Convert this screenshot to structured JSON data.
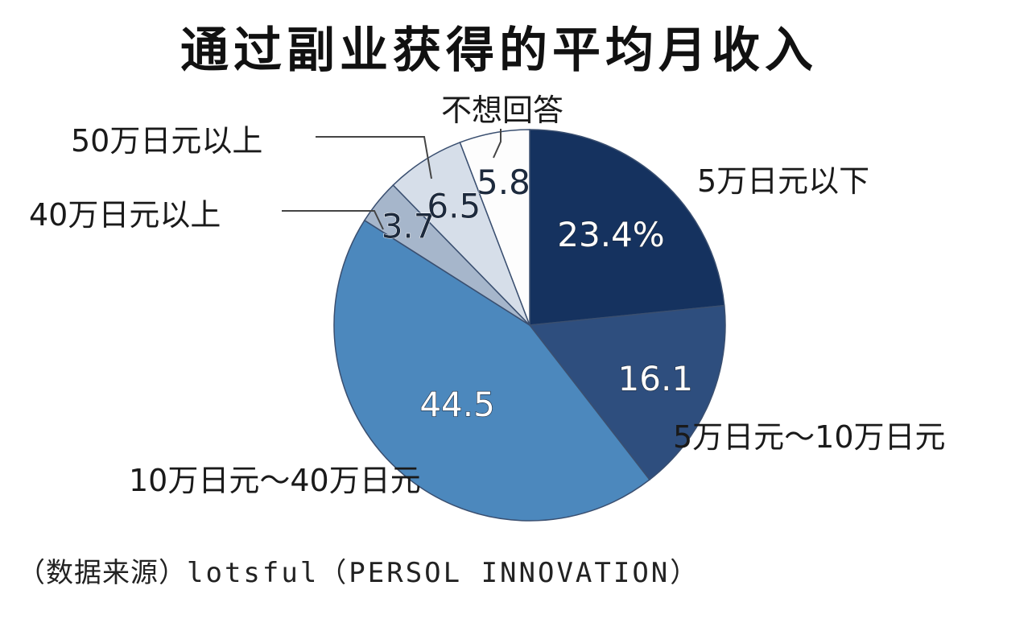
{
  "chart_data": {
    "type": "pie",
    "title": "通过副业获得的平均月收入",
    "slices": [
      {
        "label": "5万日元以下",
        "value": 23.4,
        "value_label": "23.4%",
        "color": "#15325f"
      },
      {
        "label": "5万日元～10万日元",
        "value": 16.1,
        "value_label": "16.1",
        "color": "#2e4e7e"
      },
      {
        "label": "10万日元～40万日元",
        "value": 44.5,
        "value_label": "44.5",
        "color": "#4c88bd"
      },
      {
        "label": "40万日元以上",
        "value": 3.7,
        "value_label": "3.7",
        "color": "#a6b6cb"
      },
      {
        "label": "50万日元以上",
        "value": 6.5,
        "value_label": "6.5",
        "color": "#d6dee9"
      },
      {
        "label": "不想回答",
        "value": 5.8,
        "value_label": "5.8",
        "color": "#fdfdfd"
      }
    ],
    "start_angle": "12 o'clock",
    "direction": "clockwise"
  },
  "source": {
    "prefix": "（数据来源）",
    "brand": "lotsful（PERSOL INNOVATION）"
  }
}
